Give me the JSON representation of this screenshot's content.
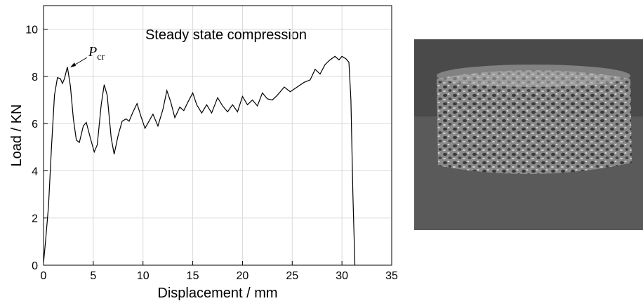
{
  "chart_data": {
    "type": "line",
    "annotations": [
      "Steady state compression"
    ],
    "pcr_label": "P",
    "pcr_subscript": "cr",
    "x_label": "Displacement / mm",
    "y_label": "Load / KN",
    "xlim": [
      0,
      35
    ],
    "xticks": [
      0,
      5,
      10,
      15,
      20,
      25,
      30,
      35
    ],
    "ylim": [
      0,
      11
    ],
    "yticks": [
      0,
      2,
      4,
      6,
      8,
      10
    ],
    "grid": true,
    "series": [
      {
        "color": "#000000",
        "x": [
          0,
          0.2,
          0.5,
          0.8,
          1.1,
          1.4,
          1.7,
          1.9,
          2.1,
          2.4,
          2.7,
          3.0,
          3.3,
          3.6,
          4.0,
          4.3,
          4.7,
          5.1,
          5.4,
          5.8,
          6.1,
          6.4,
          6.8,
          7.1,
          7.5,
          7.9,
          8.3,
          8.6,
          9.0,
          9.4,
          9.8,
          10.2,
          10.6,
          11.0,
          11.5,
          12.0,
          12.4,
          12.8,
          13.2,
          13.7,
          14.1,
          14.5,
          15.0,
          15.4,
          15.9,
          16.4,
          16.9,
          17.5,
          18.0,
          18.5,
          19.0,
          19.5,
          20.0,
          20.5,
          21.0,
          21.5,
          22.0,
          22.5,
          23.0,
          23.5,
          24.2,
          24.8,
          25.5,
          26.2,
          26.8,
          27.3,
          27.8,
          28.3,
          28.8,
          29.3,
          29.7,
          30.0,
          30.4,
          30.7,
          30.9,
          31.1,
          31.3
        ],
        "values": [
          0.1,
          1.0,
          2.5,
          5.0,
          7.2,
          7.95,
          7.9,
          7.7,
          7.9,
          8.4,
          7.6,
          6.2,
          5.3,
          5.2,
          5.9,
          6.05,
          5.4,
          4.8,
          5.1,
          6.8,
          7.65,
          7.2,
          5.4,
          4.7,
          5.5,
          6.1,
          6.2,
          6.1,
          6.5,
          6.85,
          6.3,
          5.8,
          6.1,
          6.4,
          5.9,
          6.6,
          7.4,
          6.9,
          6.25,
          6.7,
          6.55,
          6.9,
          7.3,
          6.8,
          6.45,
          6.8,
          6.45,
          7.1,
          6.75,
          6.5,
          6.8,
          6.5,
          7.15,
          6.8,
          7.0,
          6.75,
          7.3,
          7.05,
          7.0,
          7.2,
          7.55,
          7.35,
          7.55,
          7.75,
          7.85,
          8.3,
          8.1,
          8.5,
          8.7,
          8.85,
          8.7,
          8.85,
          8.75,
          8.6,
          7.0,
          3.0,
          0
        ]
      }
    ]
  }
}
